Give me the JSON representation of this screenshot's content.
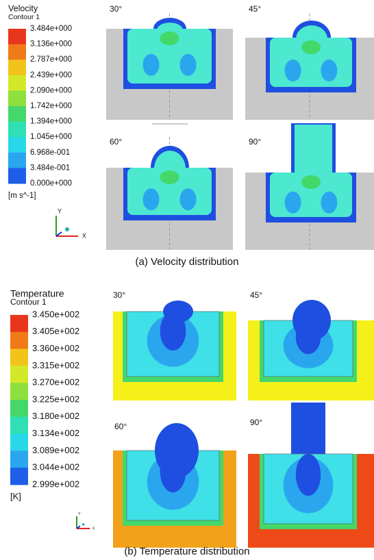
{
  "velocity": {
    "legend": {
      "title": "Velocity",
      "subtitle": "Contour 1",
      "labels": [
        "3.484e+000",
        "3.136e+000",
        "2.787e+000",
        "2.439e+000",
        "2.090e+000",
        "1.742e+000",
        "1.394e+000",
        "1.045e+000",
        "6.968e-001",
        "3.484e-001",
        "0.000e+000"
      ],
      "unit": "[m s^-1]"
    },
    "axes": {
      "y": "Y",
      "x": "X"
    },
    "panels": [
      "30°",
      "45°",
      "60°",
      "90°"
    ],
    "caption": "(a) Velocity distribution"
  },
  "temperature": {
    "legend": {
      "title": "Temperature",
      "subtitle": "Contour 1",
      "labels": [
        "3.450e+002",
        "3.405e+002",
        "3.360e+002",
        "3.315e+002",
        "3.270e+002",
        "3.225e+002",
        "3.180e+002",
        "3.134e+002",
        "3.089e+002",
        "3.044e+002",
        "2.999e+002"
      ],
      "unit": "[K]"
    },
    "axes": {
      "y": "Y",
      "x": "X"
    },
    "panels": [
      "30°",
      "45°",
      "60°",
      "90°"
    ],
    "caption": "(b) Temperature distribution"
  }
}
